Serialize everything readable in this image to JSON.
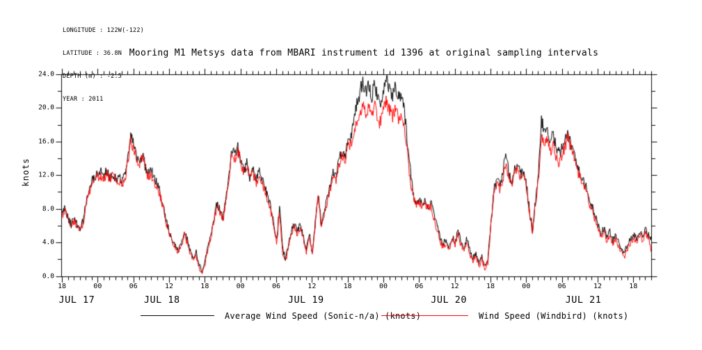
{
  "meta": {
    "lines": [
      "LONGITUDE : 122W(-122)",
      "LATITUDE : 36.8N",
      "DEPTH (m) : -2.5",
      "YEAR : 2011"
    ]
  },
  "title": "Mooring M1 Metsys data from MBARI instrument id 1396 at original sampling intervals",
  "legend": {
    "items": [
      {
        "label": "Average Wind Speed (Sonic-n/a) (knots)",
        "color": "#000000"
      },
      {
        "label": "Wind Speed (Windbird) (knots)",
        "color": "#ff0000"
      }
    ]
  },
  "chart_data": {
    "type": "line",
    "title": "Mooring M1 Metsys data from MBARI instrument id 1396 at original sampling intervals",
    "xlabel": "",
    "ylabel": "knots",
    "ylim": [
      0,
      24
    ],
    "y_major_ticks": [
      0,
      4,
      8,
      12,
      16,
      20,
      24
    ],
    "y_major_tick_labels": [
      "0.0",
      "4.0",
      "8.0",
      "12.0",
      "16.0",
      "20.0",
      "24.0"
    ],
    "y_minor_step": 2,
    "x_unit": "hours since JUL 17 2011 18:00",
    "xlim": [
      0,
      99
    ],
    "x_major_tick_step_hours": 6,
    "x_minor_tick_step_hours": 1,
    "x_major_tick_labels": [
      "18",
      "00",
      "06",
      "12",
      "18",
      "00",
      "06",
      "12",
      "18",
      "00",
      "06",
      "12",
      "18",
      "00",
      "06",
      "12",
      "18"
    ],
    "day_labels": [
      {
        "label": "JUL 17",
        "hour": 2.5
      },
      {
        "label": "JUL 18",
        "hour": 16.8
      },
      {
        "label": "JUL 19",
        "hour": 41.0
      },
      {
        "label": "JUL 20",
        "hour": 65.0
      },
      {
        "label": "JUL 21",
        "hour": 87.6
      }
    ],
    "grid": false,
    "legend_position": "bottom",
    "start_hour": 0,
    "step_hours": 0.5,
    "noise_amplitude": 0.5,
    "series": [
      {
        "name": "Average Wind Speed (Sonic-n/a) (knots)",
        "color": "#000000",
        "values": [
          7.6,
          8.2,
          6.9,
          6.2,
          7.0,
          6.1,
          5.7,
          6.6,
          8.9,
          10.3,
          11.4,
          11.9,
          12.1,
          12.5,
          11.8,
          12.6,
          11.9,
          12.3,
          11.5,
          11.9,
          11.3,
          11.8,
          13.9,
          16.8,
          15.6,
          14.4,
          13.6,
          14.6,
          12.9,
          12.3,
          12.5,
          11.6,
          11.0,
          9.9,
          8.2,
          6.5,
          5.3,
          4.4,
          3.7,
          3.2,
          3.9,
          5.3,
          4.4,
          3.0,
          2.3,
          2.8,
          1.4,
          0.6,
          1.9,
          3.6,
          5.1,
          7.0,
          8.6,
          7.9,
          6.9,
          9.4,
          12.1,
          15.0,
          14.4,
          15.4,
          13.8,
          12.6,
          13.5,
          11.9,
          12.8,
          11.4,
          12.4,
          11.9,
          10.6,
          9.4,
          8.3,
          6.5,
          4.2,
          8.2,
          3.4,
          2.0,
          3.6,
          5.6,
          6.1,
          5.4,
          6.2,
          4.9,
          3.2,
          5.2,
          2.6,
          6.4,
          9.9,
          6.1,
          7.6,
          9.2,
          10.6,
          12.6,
          11.9,
          13.8,
          14.8,
          14.2,
          15.9,
          16.6,
          18.4,
          20.6,
          21.9,
          23.2,
          21.8,
          22.6,
          21.4,
          22.9,
          21.1,
          20.7,
          22.4,
          23.7,
          22.3,
          21.6,
          22.5,
          21.2,
          21.8,
          19.5,
          15.8,
          12.4,
          9.6,
          8.8,
          9.3,
          8.6,
          9.0,
          8.4,
          8.8,
          7.2,
          5.9,
          4.6,
          3.8,
          4.4,
          3.6,
          4.7,
          4.1,
          5.4,
          4.2,
          3.4,
          4.6,
          3.0,
          2.2,
          2.8,
          1.6,
          2.4,
          1.2,
          2.1,
          6.4,
          10.2,
          11.4,
          10.8,
          12.1,
          15.1,
          12.3,
          11.2,
          12.6,
          13.4,
          12.2,
          12.5,
          10.8,
          7.8,
          5.6,
          8.9,
          12.4,
          18.7,
          16.9,
          17.6,
          16.2,
          16.8,
          15.4,
          14.6,
          15.2,
          16.1,
          16.9,
          15.8,
          14.9,
          13.1,
          12.2,
          11.4,
          10.6,
          9.1,
          8.3,
          7.2,
          6.1,
          5.0,
          5.7,
          4.6,
          5.3,
          4.2,
          4.8,
          3.9,
          3.2,
          2.9,
          3.8,
          4.4,
          5.1,
          4.3,
          5.4,
          4.7,
          5.6,
          4.9,
          4.4
        ]
      },
      {
        "name": "Wind Speed (Windbird) (knots)",
        "color": "#ff0000",
        "values": [
          7.3,
          7.8,
          6.6,
          5.9,
          6.7,
          5.8,
          5.4,
          6.3,
          8.5,
          10.0,
          11.1,
          11.6,
          11.8,
          12.1,
          11.5,
          12.2,
          11.6,
          11.9,
          11.2,
          11.5,
          11.0,
          11.5,
          13.5,
          16.2,
          15.1,
          14.0,
          13.2,
          14.1,
          12.5,
          11.9,
          12.1,
          11.2,
          10.6,
          9.5,
          7.9,
          6.2,
          5.0,
          4.1,
          3.4,
          2.9,
          3.6,
          5.0,
          4.1,
          2.7,
          2.0,
          2.5,
          1.1,
          0.4,
          1.6,
          3.3,
          4.8,
          6.7,
          8.3,
          7.6,
          6.6,
          9.1,
          11.8,
          14.6,
          14.0,
          15.0,
          13.4,
          12.2,
          13.1,
          11.6,
          12.4,
          11.0,
          12.0,
          11.5,
          10.2,
          9.0,
          8.0,
          6.2,
          3.9,
          7.5,
          3.0,
          1.7,
          3.3,
          5.3,
          5.8,
          5.1,
          5.9,
          4.6,
          2.9,
          4.9,
          2.3,
          6.1,
          9.5,
          5.8,
          7.3,
          8.9,
          10.2,
          12.2,
          11.5,
          13.4,
          14.4,
          13.8,
          15.4,
          15.6,
          16.9,
          18.6,
          19.4,
          20.7,
          19.3,
          20.1,
          18.9,
          20.4,
          18.6,
          18.2,
          19.9,
          20.8,
          19.8,
          19.1,
          20.0,
          18.7,
          19.3,
          17.5,
          14.3,
          11.4,
          9.2,
          8.4,
          8.9,
          8.2,
          8.6,
          8.0,
          8.4,
          6.8,
          5.5,
          4.2,
          3.4,
          4.0,
          3.2,
          4.3,
          3.7,
          5.0,
          3.8,
          3.0,
          4.2,
          2.6,
          1.8,
          2.4,
          1.2,
          2.0,
          0.9,
          1.7,
          6.0,
          9.8,
          11.0,
          10.4,
          11.6,
          13.0,
          11.9,
          10.8,
          12.2,
          12.9,
          11.8,
          12.1,
          10.4,
          7.5,
          5.3,
          8.6,
          11.6,
          16.5,
          15.6,
          16.3,
          15.0,
          15.5,
          14.2,
          13.5,
          14.6,
          15.6,
          16.4,
          15.3,
          14.4,
          12.7,
          11.8,
          11.0,
          10.2,
          8.7,
          7.9,
          6.8,
          5.7,
          4.6,
          5.3,
          4.2,
          4.9,
          3.8,
          4.4,
          3.5,
          2.8,
          2.5,
          3.4,
          4.0,
          4.7,
          3.9,
          5.0,
          4.3,
          5.2,
          4.4,
          2.9
        ]
      }
    ]
  }
}
